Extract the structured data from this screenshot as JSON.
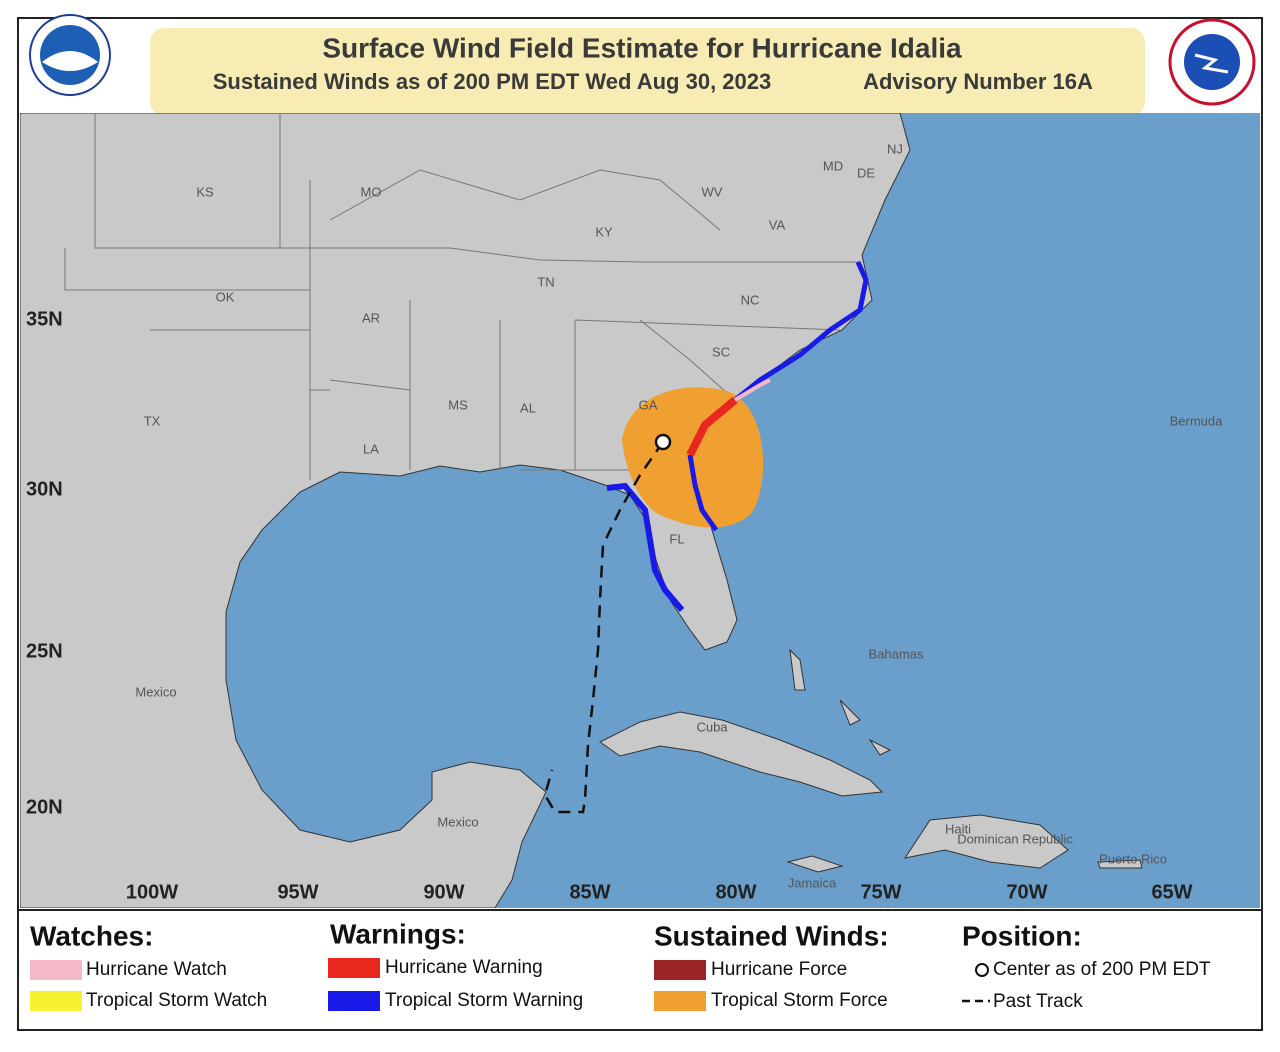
{
  "header": {
    "title": "Surface Wind Field Estimate for Hurricane Idalia",
    "subtitle": "Sustained Winds as of 200 PM EDT Wed Aug 30, 2023",
    "advisory": "Advisory Number 16A"
  },
  "map": {
    "lat_labels": [
      "35N",
      "30N",
      "25N",
      "20N"
    ],
    "lon_labels": [
      "100W",
      "95W",
      "90W",
      "85W",
      "80W",
      "75W",
      "70W",
      "65W"
    ],
    "place_labels": [
      "KS",
      "MO",
      "KY",
      "WV",
      "VA",
      "MD",
      "DE",
      "NJ",
      "TN",
      "NC",
      "OK",
      "AR",
      "SC",
      "TX",
      "MS",
      "AL",
      "GA",
      "LA",
      "FL",
      "Bermuda",
      "Bahamas",
      "Mexico",
      "Cuba",
      "Mexico",
      "Haiti",
      "Dominican Republic",
      "Puerto Rico",
      "Jamaica"
    ]
  },
  "legend": {
    "watches": {
      "title": "Watches:",
      "items": [
        "Hurricane Watch",
        "Tropical Storm Watch"
      ]
    },
    "warnings": {
      "title": "Warnings:",
      "items": [
        "Hurricane Warning",
        "Tropical Storm Warning"
      ]
    },
    "winds": {
      "title": "Sustained Winds:",
      "items": [
        "Hurricane Force",
        "Tropical Storm Force"
      ]
    },
    "position": {
      "title": "Position:",
      "items": [
        "Center as of 200 PM EDT",
        "Past Track"
      ]
    }
  }
}
